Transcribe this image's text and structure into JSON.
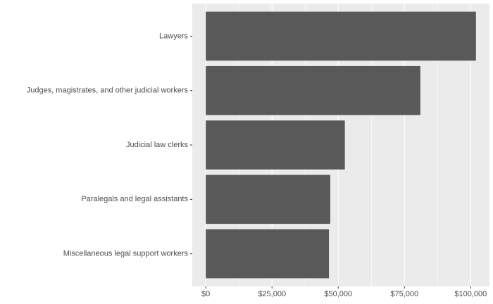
{
  "chart_data": {
    "type": "bar",
    "orientation": "horizontal",
    "title": "",
    "xlabel": "",
    "ylabel": "",
    "categories": [
      "Lawyers",
      "Judges, magistrates, and other judicial workers",
      "Judicial law clerks",
      "Paralegals and legal assistants",
      "Miscellaneous legal support workers"
    ],
    "values": [
      102000,
      81000,
      52500,
      47000,
      46500
    ],
    "xlim": [
      -5100,
      107100
    ],
    "x_ticks": [
      0,
      25000,
      50000,
      75000,
      100000
    ],
    "x_tick_labels": [
      "$0",
      "$25,000",
      "$50,000",
      "$75,000",
      "$100,000"
    ],
    "grid": true,
    "legend": "none",
    "colors": {
      "panel": "#ebebeb",
      "grid_major": "#ffffff",
      "bar": "#595959",
      "text": "#4d4d4d",
      "tick": "#333333"
    }
  }
}
